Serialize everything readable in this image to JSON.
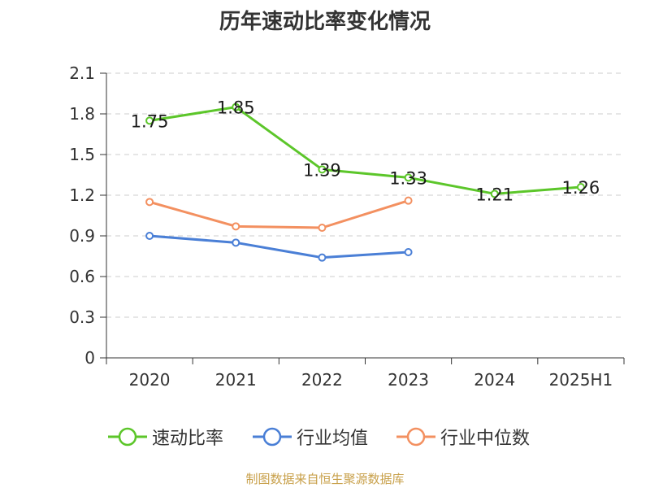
{
  "title": "历年速动比率变化情况",
  "source_note": "制图数据来自恒生聚源数据库",
  "colors": {
    "速动比率": "#5cc62a",
    "行业均值": "#4a7fd6",
    "行业中位数": "#f39060",
    "grid": "#cccccc",
    "axis": "#333333"
  },
  "chart_data": {
    "type": "line",
    "title": "历年速动比率变化情况",
    "categories": [
      "2020",
      "2021",
      "2022",
      "2023",
      "2024",
      "2025H1"
    ],
    "ylim": [
      0,
      2.1
    ],
    "yticks": [
      "0",
      "0.3",
      "0.6",
      "0.9",
      "1.2",
      "1.5",
      "1.8",
      "2.1"
    ],
    "grid": true,
    "legend": "bottom",
    "series": [
      {
        "name": "速动比率",
        "values": [
          1.75,
          1.85,
          1.39,
          1.33,
          1.21,
          1.26
        ],
        "labels": [
          "1.75",
          "1.85",
          "1.39",
          "1.33",
          "1.21",
          "1.26"
        ],
        "show_labels": true
      },
      {
        "name": "行业均值",
        "values": [
          0.9,
          0.85,
          0.74,
          0.78,
          null,
          null
        ],
        "show_labels": false
      },
      {
        "name": "行业中位数",
        "values": [
          1.15,
          0.97,
          0.96,
          1.16,
          null,
          null
        ],
        "show_labels": false
      }
    ]
  }
}
